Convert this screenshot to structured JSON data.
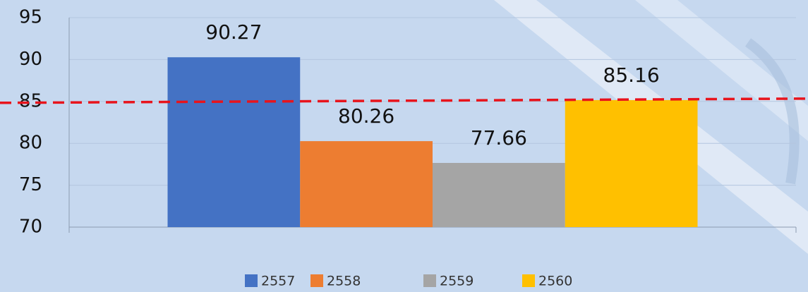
{
  "chart_data": {
    "type": "bar",
    "categories": [
      null
    ],
    "series": [
      {
        "name": "2557",
        "color": "#4472c4",
        "values": [
          90.27
        ]
      },
      {
        "name": "2558",
        "color": "#ed7d31",
        "values": [
          80.26
        ]
      },
      {
        "name": "2559",
        "color": "#a5a5a5",
        "values": [
          77.66
        ]
      },
      {
        "name": "2560",
        "color": "#ffc000",
        "values": [
          85.16
        ]
      }
    ],
    "ylim": [
      70,
      95
    ],
    "yticks": [
      70,
      75,
      80,
      85,
      90,
      95
    ],
    "grid": true,
    "reference_line": {
      "value": 85,
      "color": "#e8141c",
      "style": "dashed"
    },
    "legend": "bottom"
  }
}
